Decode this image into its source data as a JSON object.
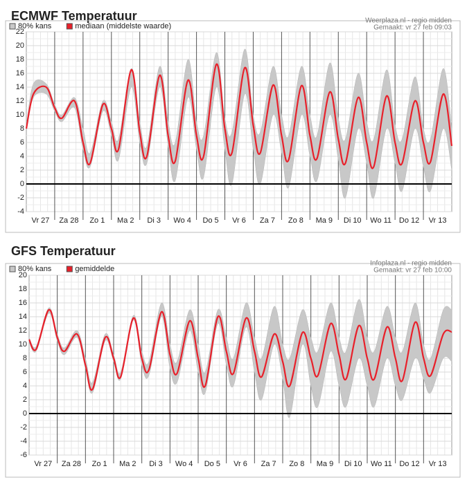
{
  "chart_data": [
    {
      "type": "line",
      "title": "ECMWF Temperatuur",
      "source": "Weerplaza.nl - regio midden",
      "created": "Gemaakt: vr 27 feb 09:03",
      "categories": [
        "Vr 27",
        "Za 28",
        "Zo 1",
        "Ma 2",
        "Di 3",
        "Wo 4",
        "Do 5",
        "Vr 6",
        "Za 7",
        "Zo 8",
        "Ma 9",
        "Di 10",
        "Wo 11",
        "Do 12",
        "Vr 13"
      ],
      "x": [
        0,
        0.25,
        0.7,
        1,
        1.25,
        1.7,
        2,
        2.25,
        2.7,
        3,
        3.25,
        3.7,
        4,
        4.25,
        4.7,
        5,
        5.25,
        5.7,
        6,
        6.25,
        6.7,
        7,
        7.25,
        7.7,
        8,
        8.25,
        8.7,
        9,
        9.25,
        9.7,
        10,
        10.25,
        10.7,
        11,
        11.25,
        11.7,
        12,
        12.25,
        12.7,
        13,
        13.25,
        13.7,
        14,
        14.25,
        14.7,
        15
      ],
      "xlim": [
        0,
        15
      ],
      "ylim": [
        -4,
        22
      ],
      "yticks": [
        -4,
        -2,
        0,
        2,
        4,
        6,
        8,
        10,
        12,
        14,
        16,
        18,
        20,
        22
      ],
      "band": {
        "name": "80% kans",
        "color": "#c8c8c8",
        "low": [
          8,
          12.5,
          13,
          10.5,
          9,
          11,
          5,
          2.5,
          10.5,
          7,
          3.5,
          14,
          6,
          3,
          14,
          5.5,
          0.5,
          12.5,
          5,
          1,
          14,
          5,
          0,
          13,
          5,
          0,
          10,
          4.5,
          -0.5,
          10,
          4,
          0.5,
          10,
          3.5,
          -2,
          8,
          3,
          -2,
          8,
          3,
          -1,
          8,
          2.5,
          -1,
          8,
          2
        ],
        "high": [
          8.5,
          14.5,
          14.5,
          11.5,
          10,
          12.5,
          8,
          4.5,
          12,
          9,
          6.5,
          16.7,
          9,
          5.5,
          17,
          9,
          6,
          18,
          9,
          7,
          19,
          9.5,
          7.5,
          19.5,
          10,
          7.5,
          17,
          10,
          7,
          17,
          10,
          7,
          17.5,
          9.5,
          6.5,
          16,
          9,
          6.5,
          16.5,
          8.5,
          6.5,
          15.5,
          8,
          6.5,
          16.7,
          8
        ]
      },
      "series": [
        {
          "name": "mediaan (middelste waarde)",
          "color": "#e8202a",
          "values": [
            8,
            13,
            14,
            11,
            9.5,
            12,
            6,
            3,
            11.5,
            8,
            5,
            16.5,
            7.5,
            4,
            15.7,
            7,
            3.3,
            15,
            7,
            4,
            17.3,
            8,
            4.5,
            16.8,
            8.5,
            4.5,
            14.3,
            7,
            3.5,
            14.2,
            7,
            3.7,
            13.3,
            6.5,
            3,
            12.5,
            6,
            2.5,
            12.7,
            6,
            3,
            12,
            6,
            3.2,
            13,
            5.5
          ]
        }
      ]
    },
    {
      "type": "line",
      "title": "GFS Temperatuur",
      "source": "Infoplaza.nl - regio midden",
      "created": "Gemaakt: vr 27 feb 10:00",
      "categories": [
        "Vr 27",
        "Za 28",
        "Zo 1",
        "Ma 2",
        "Di 3",
        "Wo 4",
        "Do 5",
        "Vr 6",
        "Za 7",
        "Zo 8",
        "Ma 9",
        "Di 10",
        "Wo 11",
        "Do 12",
        "Vr 13"
      ],
      "x": [
        0,
        0.25,
        0.7,
        1,
        1.25,
        1.7,
        2,
        2.25,
        2.7,
        3,
        3.25,
        3.7,
        4,
        4.25,
        4.7,
        5,
        5.25,
        5.7,
        6,
        6.25,
        6.7,
        7,
        7.25,
        7.7,
        8,
        8.25,
        8.7,
        9,
        9.25,
        9.7,
        10,
        10.25,
        10.7,
        11,
        11.25,
        11.7,
        12,
        12.25,
        12.7,
        13,
        13.25,
        13.7,
        14,
        14.25,
        14.7,
        15
      ],
      "xlim": [
        0,
        15
      ],
      "ylim": [
        -6,
        20
      ],
      "yticks": [
        -6,
        -4,
        -2,
        0,
        2,
        4,
        6,
        8,
        10,
        12,
        14,
        16,
        18,
        20
      ],
      "band": {
        "name": "80% kans",
        "color": "#c8c8c8",
        "low": [
          10.3,
          9,
          14.5,
          10.5,
          8.5,
          11,
          6.5,
          3,
          10.5,
          7.5,
          5,
          13.5,
          7,
          5.5,
          14,
          6.5,
          4.5,
          12,
          6,
          3,
          13,
          7,
          4,
          12.5,
          6,
          2,
          10,
          5,
          -0.5,
          10,
          4,
          1,
          9,
          4,
          1,
          8,
          4,
          1,
          8,
          4,
          2,
          8,
          5,
          3,
          8,
          7.5
        ],
        "high": [
          11,
          9.7,
          15.3,
          11.5,
          9.5,
          12,
          8,
          4.5,
          11.5,
          8.5,
          6,
          14.2,
          9,
          7.5,
          16,
          10,
          7.5,
          15,
          10,
          6,
          15,
          11,
          8,
          16,
          11,
          8,
          15.5,
          10,
          8,
          15,
          11,
          9,
          16,
          11,
          9,
          16.5,
          11,
          9,
          15.5,
          11,
          9,
          16,
          10,
          8,
          15,
          15
        ]
      },
      "series": [
        {
          "name": "gemiddelde",
          "color": "#e8202a",
          "values": [
            10.7,
            9.3,
            15,
            11,
            9,
            11.5,
            7,
            3.5,
            11,
            8,
            5.3,
            13.8,
            8,
            6.3,
            14.7,
            8.5,
            5.8,
            13.4,
            8,
            4,
            14,
            9,
            5.8,
            13.8,
            9,
            5.3,
            11.5,
            7.5,
            4,
            11.7,
            8,
            5.5,
            13,
            8.5,
            5,
            12.7,
            8,
            5,
            12.5,
            8,
            4.8,
            13.2,
            8,
            5.5,
            11.5,
            11.8
          ]
        }
      ]
    }
  ]
}
